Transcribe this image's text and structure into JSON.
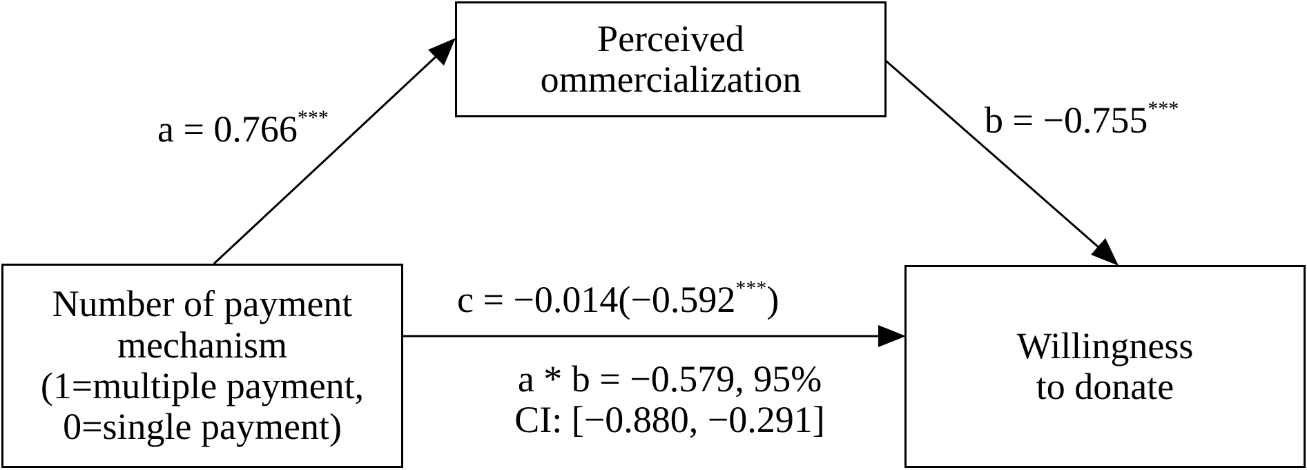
{
  "nodes": {
    "mediator": {
      "lines": [
        "Perceived",
        "ommercialization"
      ]
    },
    "independent": {
      "lines": [
        "Number of payment",
        "mechanism",
        "(1=multiple payment,",
        "0=single payment)"
      ]
    },
    "dependent": {
      "lines": [
        "Willingness",
        "to donate"
      ]
    }
  },
  "paths": {
    "a": {
      "prefix": "a = 0.766",
      "sig": "***"
    },
    "b": {
      "prefix": "b = −0.755",
      "sig": "***"
    },
    "c": {
      "prefix": "c = −0.014(−0.592",
      "sig": "***",
      "suffix": ")"
    }
  },
  "indirect_effect": {
    "line1": "a * b = −0.579, 95%",
    "line2": "CI: [−0.880, −0.291]"
  },
  "colors": {
    "stroke": "#000000",
    "background": "#ffffff"
  }
}
